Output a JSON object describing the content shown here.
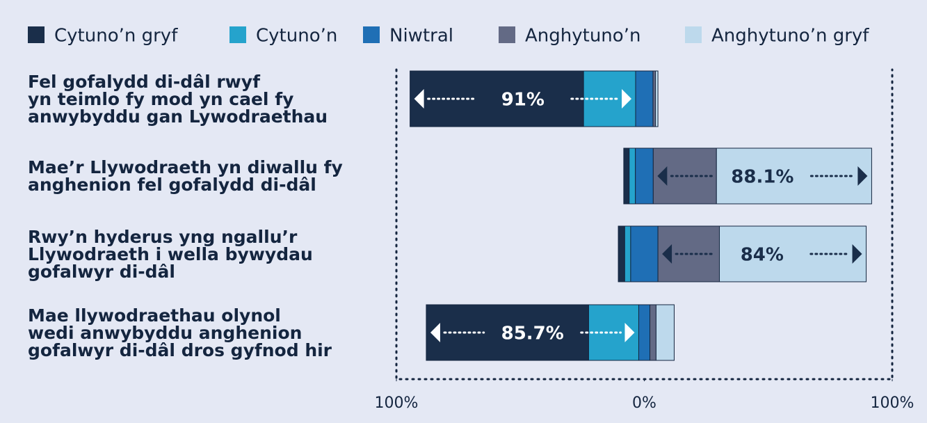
{
  "chart_data": {
    "type": "diverging_bar",
    "categories": [
      "Fel gofalydd di-dâl rwyf\nyn teimlo fy mod yn cael fy\nanwybyddu gan Lywodraethau",
      "Mae’r Llywodraeth yn diwallu fy\nanghenion fel gofalydd di-dâl",
      "Rwy’n hyderus yng ngallu’r\nLlywodraeth i wella bywydau\ngofalwyr di-dâl",
      "Mae llywodraethau olynol\nwedi anwybyddu anghenion\ngofalwyr di-dâl dros gyfnod hir"
    ],
    "series": [
      {
        "name": "Cytuno’n gryf",
        "color": "#1a2e4a",
        "values": [
          70,
          2.2,
          2.6,
          65.5
        ]
      },
      {
        "name": "Cytuno’n",
        "color": "#25a3cc",
        "values": [
          21,
          2.5,
          2.4,
          20.2
        ]
      },
      {
        "name": "Niwtral",
        "color": "#1f6fb5",
        "values": [
          7,
          7.2,
          11,
          4.5
        ]
      },
      {
        "name": "Anghytuno’n",
        "color": "#636a85",
        "values": [
          1,
          25.5,
          24.8,
          2.5
        ]
      },
      {
        "name": "Anghytuno’n gryf",
        "color": "#bdd9ec",
        "values": [
          1,
          62.6,
          59.2,
          7.3
        ]
      }
    ],
    "total_labels": [
      "91%",
      "88.1%",
      "84%",
      "85.7%"
    ],
    "xlim": [
      -100,
      100
    ],
    "xticks": [
      {
        "value": -100,
        "label": "100%"
      },
      {
        "value": 0,
        "label": "0%"
      },
      {
        "value": 100,
        "label": "100%"
      }
    ]
  }
}
